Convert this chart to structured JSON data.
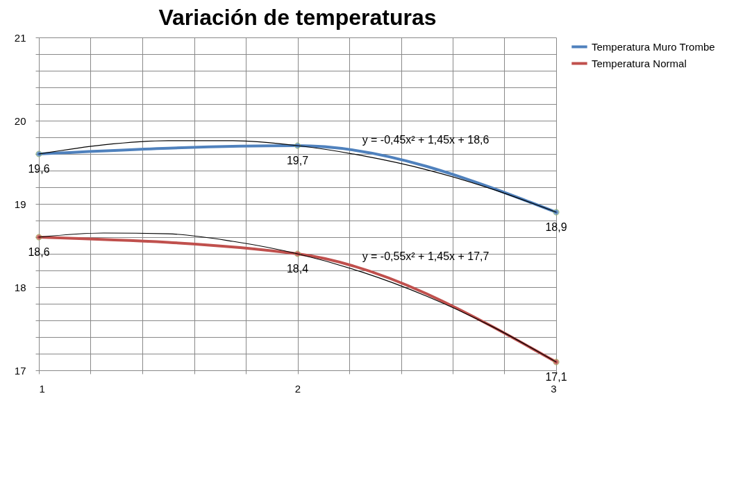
{
  "chart_data": {
    "type": "line",
    "title": "Variación de temperaturas",
    "x": [
      1,
      2,
      3
    ],
    "xlim": [
      1,
      3
    ],
    "xticks": [
      1,
      {
        "value": 1.2,
        "label": null
      },
      {
        "value": 1.4,
        "label": null
      },
      {
        "value": 1.6,
        "label": null
      },
      {
        "value": 1.8,
        "label": null
      },
      2,
      {
        "value": 2.2,
        "label": null
      },
      {
        "value": 2.4,
        "label": null
      },
      {
        "value": 2.6,
        "label": null
      },
      {
        "value": 2.8,
        "label": null
      },
      3
    ],
    "ylim": [
      17,
      21
    ],
    "yticks": [
      17,
      {
        "value": 17.2,
        "label": null
      },
      {
        "value": 17.4,
        "label": null
      },
      {
        "value": 17.6,
        "label": null
      },
      {
        "value": 17.8,
        "label": null
      },
      18,
      {
        "value": 18.2,
        "label": null
      },
      {
        "value": 18.4,
        "label": null
      },
      {
        "value": 18.6,
        "label": null
      },
      {
        "value": 18.8,
        "label": null
      },
      19,
      {
        "value": 19.2,
        "label": null
      },
      {
        "value": 19.4,
        "label": null
      },
      {
        "value": 19.6,
        "label": null
      },
      {
        "value": 19.8,
        "label": null
      },
      20,
      {
        "value": 20.2,
        "label": null
      },
      {
        "value": 20.4,
        "label": null
      },
      {
        "value": 20.6,
        "label": null
      },
      {
        "value": 20.8,
        "label": null
      },
      21
    ],
    "grid": true,
    "legend": "right",
    "marker": "circle",
    "line_style": "solid",
    "series": [
      {
        "name": "Temperatura Muro Trombe",
        "color": "#4f81bd",
        "values": [
          19.6,
          19.7,
          18.9
        ],
        "value_labels": [
          "19,6",
          "19,7",
          "18,9"
        ]
      },
      {
        "name": "Temperatura Normal",
        "color": "#c0504d",
        "values": [
          18.6,
          18.4,
          17.1
        ],
        "value_labels": [
          "18,6",
          "18,4",
          "17,1"
        ]
      },
      {
        "type": "line",
        "color": "#000000",
        "marker": "none",
        "x": [
          1,
          1.25,
          1.5,
          1.75,
          2,
          2.25,
          2.5,
          2.75,
          3
        ],
        "values": [
          19.6,
          19.71,
          19.76,
          19.76,
          19.7,
          19.58,
          19.41,
          19.18,
          18.9
        ]
      },
      {
        "type": "line",
        "color": "#000000",
        "marker": "none",
        "x": [
          1,
          1.25,
          1.5,
          1.75,
          2,
          2.25,
          2.5,
          2.75,
          3
        ],
        "values": [
          18.6,
          18.65,
          18.64,
          18.55,
          18.4,
          18.18,
          17.89,
          17.53,
          17.1
        ]
      }
    ],
    "annotations": [
      "y = -0,45x² + 1,45x + 18,6",
      "y = -0,55x² + 1,45x + 17,7"
    ]
  }
}
